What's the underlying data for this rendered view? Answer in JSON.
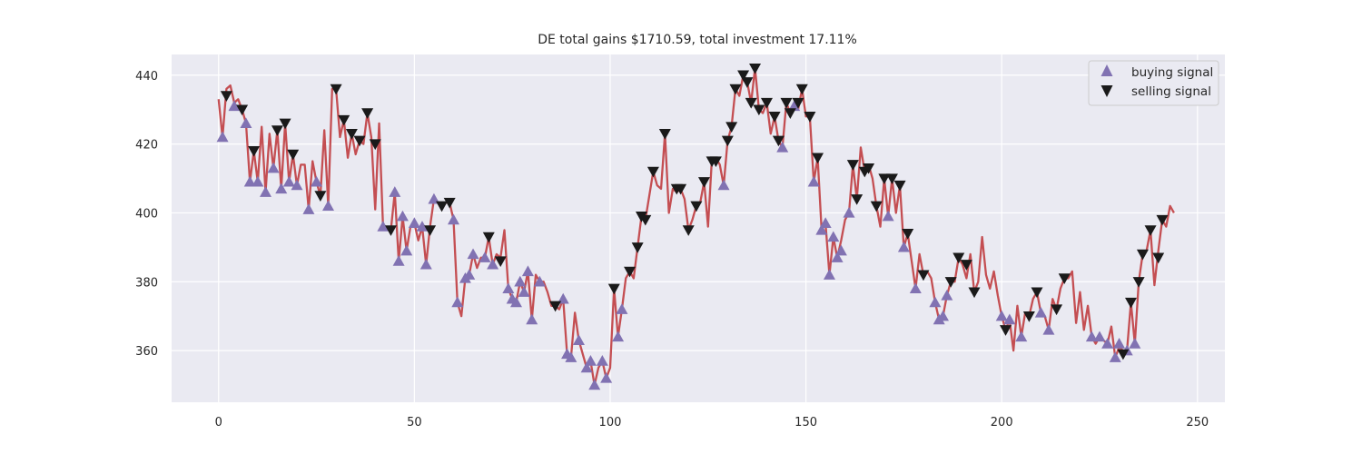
{
  "chart_data": {
    "type": "line",
    "title": "DE total gains $1710.59, total investment 17.11%",
    "xlabel": "",
    "ylabel": "",
    "xlim": [
      -12,
      257
    ],
    "ylim": [
      345,
      446
    ],
    "xticks": [
      0,
      50,
      100,
      150,
      200,
      250
    ],
    "yticks": [
      360,
      380,
      400,
      420,
      440
    ],
    "grid": true,
    "legend_position": "top-right",
    "colors": {
      "background": "#eaeaf2",
      "grid": "#ffffff",
      "close_line": "#c44e52",
      "buy_marker": "#8172b2",
      "sell_marker": "#1a1a1a"
    },
    "close": [
      [
        0,
        433
      ],
      [
        1,
        422
      ],
      [
        2,
        436
      ],
      [
        3,
        437
      ],
      [
        4,
        432
      ],
      [
        5,
        433
      ],
      [
        6,
        430
      ],
      [
        7,
        426
      ],
      [
        8,
        409
      ],
      [
        9,
        418
      ],
      [
        10,
        409
      ],
      [
        11,
        425
      ],
      [
        12,
        406
      ],
      [
        13,
        423
      ],
      [
        14,
        413
      ],
      [
        15,
        424
      ],
      [
        16,
        407
      ],
      [
        17,
        426
      ],
      [
        18,
        409
      ],
      [
        19,
        417
      ],
      [
        20,
        408
      ],
      [
        21,
        414
      ],
      [
        22,
        414
      ],
      [
        23,
        401
      ],
      [
        24,
        415
      ],
      [
        25,
        409
      ],
      [
        26,
        405
      ],
      [
        27,
        424
      ],
      [
        28,
        402
      ],
      [
        29,
        436
      ],
      [
        30,
        436
      ],
      [
        31,
        422
      ],
      [
        32,
        427
      ],
      [
        33,
        416
      ],
      [
        34,
        423
      ],
      [
        35,
        417
      ],
      [
        36,
        421
      ],
      [
        37,
        420
      ],
      [
        38,
        429
      ],
      [
        39,
        422
      ],
      [
        40,
        401
      ],
      [
        41,
        426
      ],
      [
        42,
        396
      ],
      [
        43,
        396
      ],
      [
        44,
        395
      ],
      [
        45,
        406
      ],
      [
        46,
        386
      ],
      [
        47,
        399
      ],
      [
        48,
        389
      ],
      [
        49,
        396
      ],
      [
        50,
        397
      ],
      [
        51,
        392
      ],
      [
        52,
        396
      ],
      [
        53,
        385
      ],
      [
        54,
        396
      ],
      [
        55,
        404
      ],
      [
        56,
        403
      ],
      [
        57,
        401
      ],
      [
        58,
        403
      ],
      [
        59,
        403
      ],
      [
        60,
        398
      ],
      [
        61,
        374
      ],
      [
        62,
        370
      ],
      [
        63,
        381
      ],
      [
        64,
        382
      ],
      [
        65,
        388
      ],
      [
        66,
        384
      ],
      [
        67,
        387
      ],
      [
        68,
        387
      ],
      [
        69,
        393
      ],
      [
        70,
        385
      ],
      [
        71,
        388
      ],
      [
        72,
        387
      ],
      [
        73,
        395
      ],
      [
        74,
        378
      ],
      [
        75,
        375
      ],
      [
        76,
        374
      ],
      [
        77,
        380
      ],
      [
        78,
        377
      ],
      [
        79,
        383
      ],
      [
        80,
        369
      ],
      [
        81,
        382
      ],
      [
        82,
        380
      ],
      [
        83,
        380
      ],
      [
        84,
        377
      ],
      [
        85,
        373
      ],
      [
        86,
        373
      ],
      [
        87,
        372
      ],
      [
        88,
        375
      ],
      [
        89,
        359
      ],
      [
        90,
        358
      ],
      [
        91,
        371
      ],
      [
        92,
        363
      ],
      [
        93,
        359
      ],
      [
        94,
        355
      ],
      [
        95,
        357
      ],
      [
        96,
        350
      ],
      [
        97,
        355
      ],
      [
        98,
        357
      ],
      [
        99,
        352
      ],
      [
        100,
        355
      ],
      [
        101,
        378
      ],
      [
        102,
        364
      ],
      [
        103,
        372
      ],
      [
        104,
        381
      ],
      [
        105,
        383
      ],
      [
        106,
        381
      ],
      [
        107,
        390
      ],
      [
        108,
        399
      ],
      [
        109,
        398
      ],
      [
        110,
        405
      ],
      [
        111,
        412
      ],
      [
        112,
        408
      ],
      [
        113,
        407
      ],
      [
        114,
        423
      ],
      [
        115,
        400
      ],
      [
        116,
        407
      ],
      [
        117,
        406
      ],
      [
        118,
        407
      ],
      [
        119,
        404
      ],
      [
        120,
        395
      ],
      [
        121,
        398
      ],
      [
        122,
        402
      ],
      [
        123,
        403
      ],
      [
        124,
        409
      ],
      [
        125,
        396
      ],
      [
        126,
        416
      ],
      [
        127,
        416
      ],
      [
        128,
        414
      ],
      [
        129,
        408
      ],
      [
        130,
        421
      ],
      [
        131,
        425
      ],
      [
        132,
        436
      ],
      [
        133,
        434
      ],
      [
        134,
        440
      ],
      [
        135,
        438
      ],
      [
        136,
        432
      ],
      [
        137,
        442
      ],
      [
        138,
        430
      ],
      [
        139,
        429
      ],
      [
        140,
        432
      ],
      [
        141,
        423
      ],
      [
        142,
        428
      ],
      [
        143,
        421
      ],
      [
        144,
        419
      ],
      [
        145,
        432
      ],
      [
        146,
        429
      ],
      [
        147,
        431
      ],
      [
        148,
        430
      ],
      [
        149,
        436
      ],
      [
        150,
        428
      ],
      [
        151,
        428
      ],
      [
        152,
        409
      ],
      [
        153,
        416
      ],
      [
        154,
        395
      ],
      [
        155,
        397
      ],
      [
        156,
        382
      ],
      [
        157,
        393
      ],
      [
        158,
        387
      ],
      [
        159,
        392
      ],
      [
        160,
        398
      ],
      [
        161,
        400
      ],
      [
        162,
        414
      ],
      [
        163,
        404
      ],
      [
        164,
        419
      ],
      [
        165,
        412
      ],
      [
        166,
        414
      ],
      [
        167,
        410
      ],
      [
        168,
        402
      ],
      [
        169,
        396
      ],
      [
        170,
        410
      ],
      [
        171,
        399
      ],
      [
        172,
        410
      ],
      [
        173,
        400
      ],
      [
        174,
        408
      ],
      [
        175,
        390
      ],
      [
        176,
        394
      ],
      [
        177,
        386
      ],
      [
        178,
        378
      ],
      [
        179,
        388
      ],
      [
        180,
        382
      ],
      [
        181,
        383
      ],
      [
        182,
        381
      ],
      [
        183,
        374
      ],
      [
        184,
        369
      ],
      [
        185,
        370
      ],
      [
        186,
        376
      ],
      [
        187,
        380
      ],
      [
        188,
        380
      ],
      [
        189,
        387
      ],
      [
        190,
        385
      ],
      [
        191,
        381
      ],
      [
        192,
        388
      ],
      [
        193,
        377
      ],
      [
        194,
        380
      ],
      [
        195,
        393
      ],
      [
        196,
        382
      ],
      [
        197,
        378
      ],
      [
        198,
        383
      ],
      [
        199,
        376
      ],
      [
        200,
        370
      ],
      [
        201,
        366
      ],
      [
        202,
        369
      ],
      [
        203,
        360
      ],
      [
        204,
        373
      ],
      [
        205,
        364
      ],
      [
        206,
        371
      ],
      [
        207,
        370
      ],
      [
        208,
        375
      ],
      [
        209,
        377
      ],
      [
        210,
        371
      ],
      [
        211,
        370
      ],
      [
        212,
        366
      ],
      [
        213,
        375
      ],
      [
        214,
        372
      ],
      [
        215,
        378
      ],
      [
        216,
        381
      ],
      [
        217,
        381
      ],
      [
        218,
        383
      ],
      [
        219,
        368
      ],
      [
        220,
        377
      ],
      [
        221,
        366
      ],
      [
        222,
        373
      ],
      [
        223,
        364
      ],
      [
        224,
        362
      ],
      [
        225,
        364
      ],
      [
        226,
        363
      ],
      [
        227,
        362
      ],
      [
        228,
        367
      ],
      [
        229,
        358
      ],
      [
        230,
        361
      ],
      [
        231,
        360
      ],
      [
        232,
        360
      ],
      [
        233,
        374
      ],
      [
        234,
        362
      ],
      [
        235,
        380
      ],
      [
        236,
        388
      ],
      [
        237,
        389
      ],
      [
        238,
        395
      ],
      [
        239,
        379
      ],
      [
        240,
        389
      ],
      [
        241,
        398
      ],
      [
        242,
        396
      ],
      [
        243,
        402
      ],
      [
        244,
        400
      ]
    ],
    "buy_signals": [
      [
        1,
        422
      ],
      [
        4,
        431
      ],
      [
        7,
        426
      ],
      [
        8,
        409
      ],
      [
        10,
        409
      ],
      [
        12,
        406
      ],
      [
        14,
        413
      ],
      [
        16,
        407
      ],
      [
        18,
        409
      ],
      [
        20,
        408
      ],
      [
        23,
        401
      ],
      [
        25,
        409
      ],
      [
        28,
        402
      ],
      [
        42,
        396
      ],
      [
        45,
        406
      ],
      [
        46,
        386
      ],
      [
        47,
        399
      ],
      [
        48,
        389
      ],
      [
        50,
        397
      ],
      [
        52,
        396
      ],
      [
        53,
        385
      ],
      [
        55,
        404
      ],
      [
        60,
        398
      ],
      [
        61,
        374
      ],
      [
        63,
        381
      ],
      [
        64,
        382
      ],
      [
        65,
        388
      ],
      [
        68,
        387
      ],
      [
        70,
        385
      ],
      [
        74,
        378
      ],
      [
        75,
        375
      ],
      [
        76,
        374
      ],
      [
        77,
        380
      ],
      [
        78,
        377
      ],
      [
        79,
        383
      ],
      [
        80,
        369
      ],
      [
        82,
        380
      ],
      [
        88,
        375
      ],
      [
        89,
        359
      ],
      [
        90,
        358
      ],
      [
        92,
        363
      ],
      [
        94,
        355
      ],
      [
        95,
        357
      ],
      [
        96,
        350
      ],
      [
        98,
        357
      ],
      [
        99,
        352
      ],
      [
        102,
        364
      ],
      [
        103,
        372
      ],
      [
        129,
        408
      ],
      [
        144,
        419
      ],
      [
        147,
        431
      ],
      [
        152,
        409
      ],
      [
        154,
        395
      ],
      [
        155,
        397
      ],
      [
        156,
        382
      ],
      [
        157,
        393
      ],
      [
        158,
        387
      ],
      [
        159,
        389
      ],
      [
        161,
        400
      ],
      [
        171,
        399
      ],
      [
        175,
        390
      ],
      [
        178,
        378
      ],
      [
        183,
        374
      ],
      [
        184,
        369
      ],
      [
        185,
        370
      ],
      [
        186,
        376
      ],
      [
        200,
        370
      ],
      [
        202,
        369
      ],
      [
        205,
        364
      ],
      [
        210,
        371
      ],
      [
        212,
        366
      ],
      [
        223,
        364
      ],
      [
        225,
        364
      ],
      [
        227,
        362
      ],
      [
        229,
        358
      ],
      [
        230,
        362
      ],
      [
        232,
        360
      ],
      [
        234,
        362
      ]
    ],
    "sell_signals": [
      [
        2,
        434
      ],
      [
        6,
        430
      ],
      [
        9,
        418
      ],
      [
        15,
        424
      ],
      [
        17,
        426
      ],
      [
        19,
        417
      ],
      [
        26,
        405
      ],
      [
        30,
        436
      ],
      [
        32,
        427
      ],
      [
        34,
        423
      ],
      [
        36,
        421
      ],
      [
        38,
        429
      ],
      [
        40,
        420
      ],
      [
        44,
        395
      ],
      [
        57,
        402
      ],
      [
        59,
        403
      ],
      [
        54,
        395
      ],
      [
        69,
        393
      ],
      [
        72,
        386
      ],
      [
        86,
        373
      ],
      [
        101,
        378
      ],
      [
        105,
        383
      ],
      [
        107,
        390
      ],
      [
        108,
        399
      ],
      [
        109,
        398
      ],
      [
        111,
        412
      ],
      [
        114,
        423
      ],
      [
        117,
        407
      ],
      [
        118,
        407
      ],
      [
        120,
        395
      ],
      [
        122,
        402
      ],
      [
        124,
        409
      ],
      [
        126,
        415
      ],
      [
        127,
        415
      ],
      [
        130,
        421
      ],
      [
        131,
        425
      ],
      [
        132,
        436
      ],
      [
        134,
        440
      ],
      [
        135,
        438
      ],
      [
        136,
        432
      ],
      [
        137,
        442
      ],
      [
        138,
        430
      ],
      [
        140,
        432
      ],
      [
        142,
        428
      ],
      [
        143,
        421
      ],
      [
        145,
        432
      ],
      [
        146,
        429
      ],
      [
        148,
        432
      ],
      [
        149,
        436
      ],
      [
        151,
        428
      ],
      [
        153,
        416
      ],
      [
        162,
        414
      ],
      [
        163,
        404
      ],
      [
        165,
        412
      ],
      [
        166,
        413
      ],
      [
        168,
        402
      ],
      [
        170,
        410
      ],
      [
        172,
        410
      ],
      [
        174,
        408
      ],
      [
        176,
        394
      ],
      [
        180,
        382
      ],
      [
        187,
        380
      ],
      [
        189,
        387
      ],
      [
        191,
        385
      ],
      [
        193,
        377
      ],
      [
        201,
        366
      ],
      [
        207,
        370
      ],
      [
        209,
        377
      ],
      [
        214,
        372
      ],
      [
        216,
        381
      ],
      [
        231,
        359
      ],
      [
        233,
        374
      ],
      [
        235,
        380
      ],
      [
        236,
        388
      ],
      [
        238,
        395
      ],
      [
        240,
        387
      ],
      [
        241,
        398
      ]
    ]
  },
  "legend": {
    "buy_label": "buying signal",
    "sell_label": "selling signal"
  }
}
